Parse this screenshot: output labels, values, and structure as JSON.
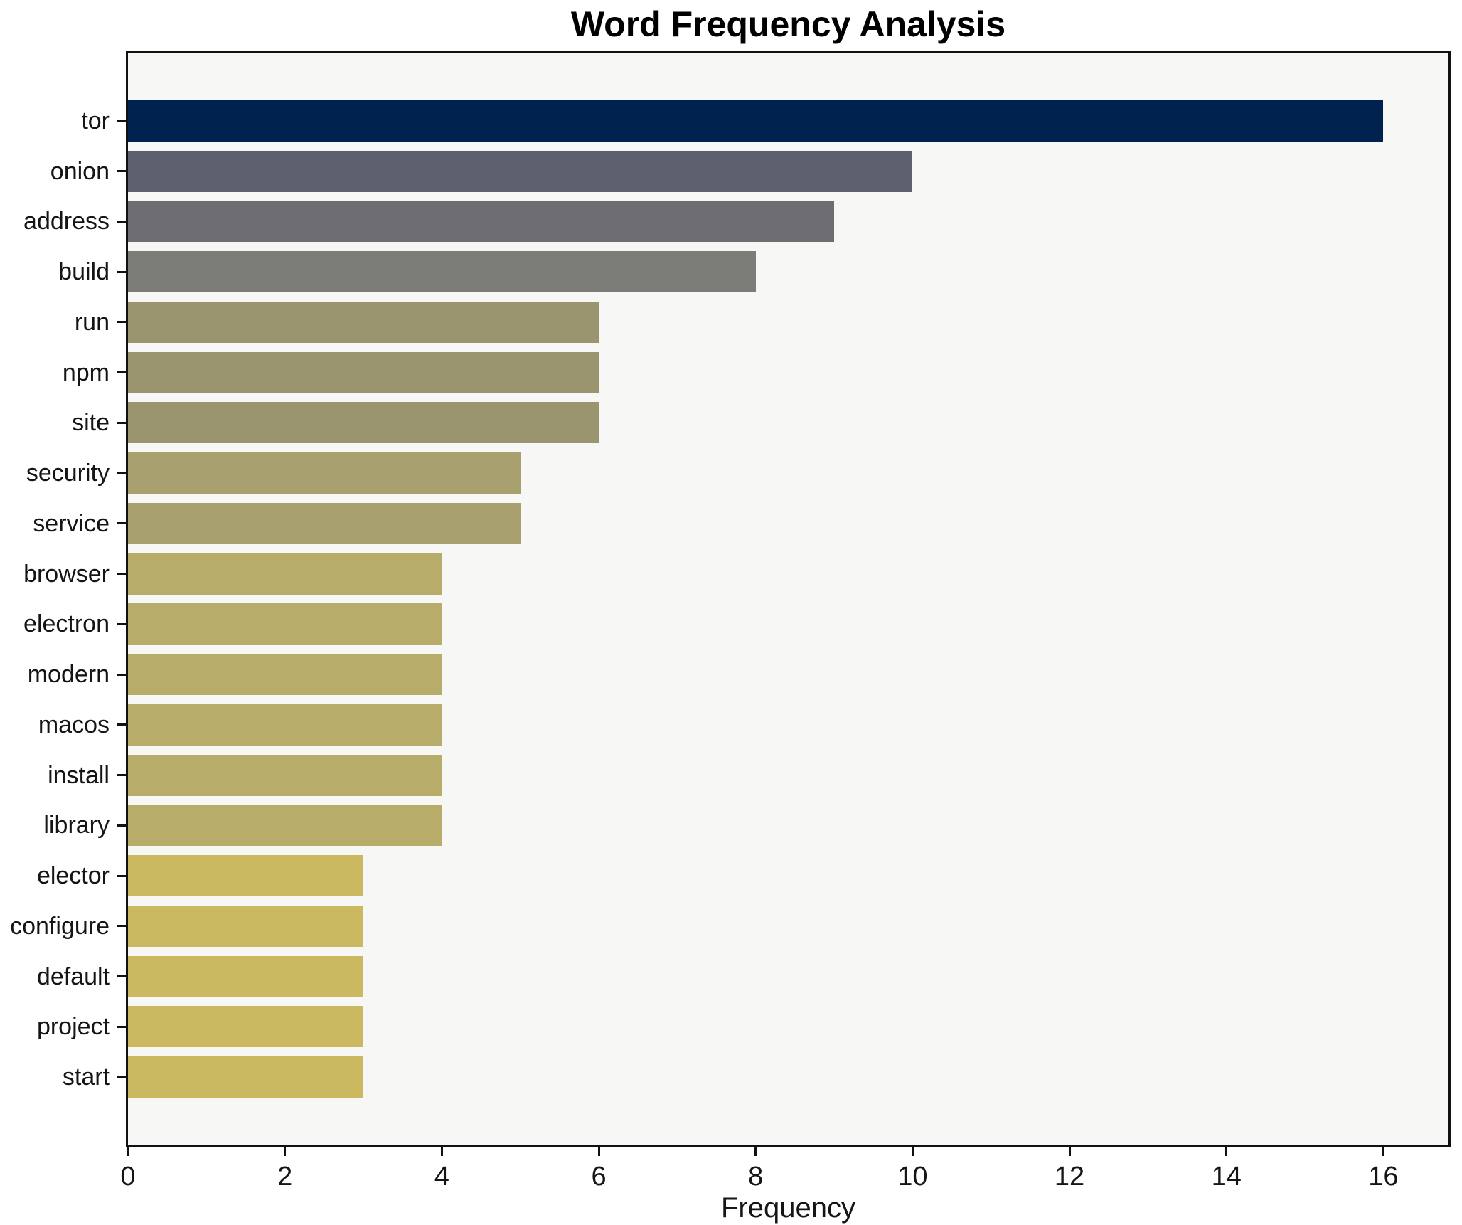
{
  "chart_data": {
    "type": "bar",
    "orientation": "horizontal",
    "title": "Word Frequency Analysis",
    "xlabel": "Frequency",
    "ylabel": "",
    "categories": [
      "tor",
      "onion",
      "address",
      "build",
      "run",
      "npm",
      "site",
      "security",
      "service",
      "browser",
      "electron",
      "modern",
      "macos",
      "install",
      "library",
      "elector",
      "configure",
      "default",
      "project",
      "start"
    ],
    "values": [
      16,
      10,
      9,
      8,
      6,
      6,
      6,
      5,
      5,
      4,
      4,
      4,
      4,
      4,
      4,
      3,
      3,
      3,
      3,
      3
    ],
    "bar_colors": [
      "#00224e",
      "#5d616e",
      "#6e6e72",
      "#7c7c78",
      "#9a946f",
      "#9a946f",
      "#9a946f",
      "#a8a06e",
      "#a8a06e",
      "#b8ac6b",
      "#b8ac6b",
      "#b8ac6b",
      "#b8ac6b",
      "#b8ac6b",
      "#b8ac6b",
      "#cbb961",
      "#cbb961",
      "#cbb961",
      "#cbb961",
      "#cbb961"
    ],
    "x_ticks": [
      0,
      2,
      4,
      6,
      8,
      10,
      12,
      14,
      16
    ],
    "xlim": [
      0,
      16.83
    ],
    "grid": false,
    "legend_position": "none",
    "plot_background": "#f7f7f5",
    "outer_background": "#ffffff",
    "spine_color": "#111111",
    "text_color": "#151515",
    "title_color": "#000000"
  }
}
